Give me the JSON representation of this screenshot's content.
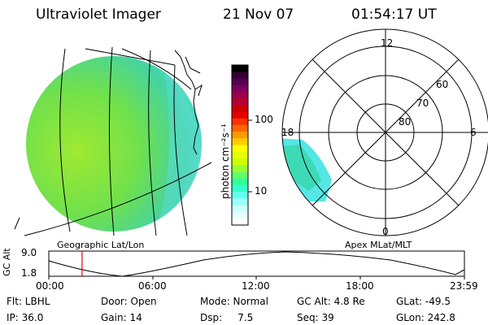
{
  "header": {
    "title": "Ultraviolet Imager",
    "date": "21 Nov 07",
    "time": "01:54:17 UT"
  },
  "left_panel": {
    "caption": "Geographic Lat/Lon"
  },
  "right_panel": {
    "caption": "Apex MLat/MLT",
    "mlt_labels": [
      "12",
      "18",
      "6",
      "0"
    ],
    "lat_labels": [
      "60",
      "70",
      "80"
    ]
  },
  "colorbar": {
    "unit_label": "photon cm⁻²s⁻¹",
    "ticks": [
      "100",
      "10"
    ],
    "colors": [
      "#000000",
      "#330033",
      "#55004d",
      "#7a0060",
      "#99004d",
      "#b30033",
      "#cc0000",
      "#e60000",
      "#ff3300",
      "#ff6600",
      "#ff9900",
      "#ffcc00",
      "#ffff00",
      "#e6ff00",
      "#ccff00",
      "#99ff33",
      "#66ff66",
      "#33ff99",
      "#33ffcc",
      "#66ffee",
      "#99ffff",
      "#ccffff",
      "#e6ffff",
      "#ffffff"
    ]
  },
  "alt_plot": {
    "label": "GC Alt",
    "y_ticks": [
      "9.0",
      "1.8"
    ],
    "x_ticks": [
      "00:00",
      "06:00",
      "12:00",
      "18:00",
      "23:59"
    ],
    "current_time_fraction": 0.08
  },
  "info": {
    "flt": "Flt: LBHL",
    "ip": "IP: 36.0",
    "door": "Door: Open",
    "gain": "Gain: 14",
    "mode": "Mode: Normal",
    "dsp": "Dsp:     7.5",
    "gcalt": "GC Alt: 4.8 Re",
    "seq": "Seq: 39",
    "glat": "GLat: -49.5",
    "glon": "GLon: 242.8"
  }
}
